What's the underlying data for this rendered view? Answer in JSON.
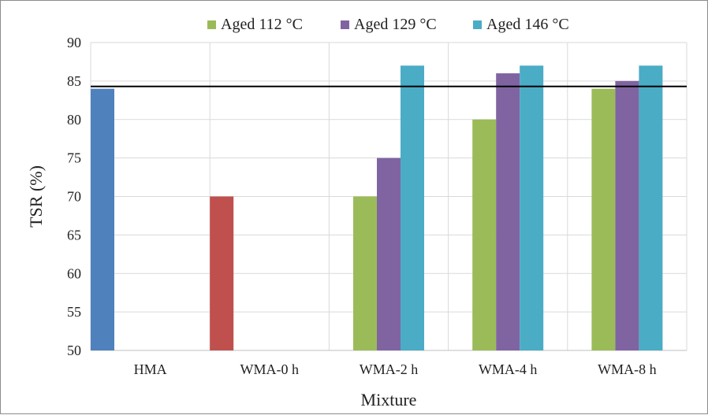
{
  "chart_data": {
    "type": "bar",
    "title": "",
    "xlabel": "Mixture",
    "ylabel": "TSR (%)",
    "ylim": [
      50,
      90
    ],
    "yticks": [
      "50",
      "55",
      "60",
      "65",
      "70",
      "75",
      "80",
      "85",
      "90"
    ],
    "categories": [
      "HMA",
      "WMA-0 h",
      "WMA-2 h",
      "WMA-4 h",
      "WMA-8 h"
    ],
    "grid": true,
    "legend_position": "top",
    "reference_line": 84.3,
    "single_bars": [
      {
        "category": "HMA",
        "value": 84,
        "color": "#4f81bd"
      },
      {
        "category": "WMA-0 h",
        "value": 70,
        "color": "#c0504d"
      }
    ],
    "series": [
      {
        "name": "Aged 112 °C",
        "color": "#9bbb59",
        "values": [
          null,
          null,
          70,
          80,
          84
        ]
      },
      {
        "name": "Aged 129 °C",
        "color": "#8064a2",
        "values": [
          null,
          null,
          75,
          86,
          85
        ]
      },
      {
        "name": "Aged 146 °C",
        "color": "#4bacc6",
        "values": [
          null,
          null,
          87,
          87,
          87
        ]
      }
    ]
  }
}
